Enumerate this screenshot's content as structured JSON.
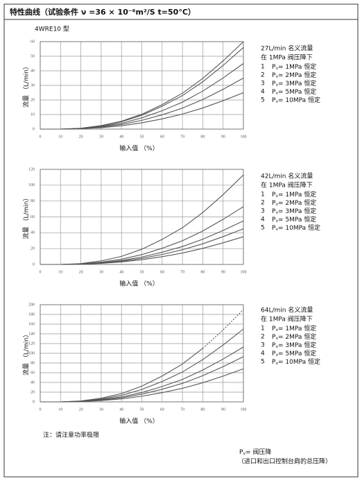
{
  "title": "特性曲线（试验条件 ν =36 × 10⁻⁶m²/S  t=50°C）",
  "pv_symbol": {
    "main": "P",
    "sub": "v"
  },
  "chart_data": [
    {
      "type": "line",
      "subtitle": "4WRE10 型",
      "x": [
        0,
        10,
        20,
        30,
        40,
        50,
        60,
        70,
        80,
        90,
        100
      ],
      "xlim": [
        0,
        100
      ],
      "xticks": [
        0,
        10,
        20,
        30,
        40,
        50,
        60,
        70,
        80,
        90,
        100
      ],
      "ylim": [
        0,
        60
      ],
      "yticks": [
        0,
        10,
        20,
        30,
        40,
        50,
        60
      ],
      "grid": true,
      "x_label": "输入值 （%）",
      "y_label": "流量 （L/min）",
      "legend_title": [
        "27L/min 名义流量",
        "在 1MPa 阀压降下"
      ],
      "series": [
        {
          "number": "1",
          "name": "= 1MPa 恒定",
          "color": "#555555",
          "values": [
            0,
            0,
            0.3,
            1,
            2.3,
            4.3,
            7,
            10.3,
            14.5,
            19.5,
            25
          ]
        },
        {
          "number": "2",
          "name": "= 2MPa 恒定",
          "color": "#555555",
          "values": [
            0,
            0,
            0.4,
            1.4,
            3.2,
            6,
            9.8,
            14.4,
            20.3,
            27.3,
            35
          ]
        },
        {
          "number": "3",
          "name": "= 3MPa 恒定",
          "color": "#555555",
          "values": [
            0,
            0,
            0.5,
            1.8,
            4,
            7.7,
            12.6,
            18.5,
            26.1,
            35.1,
            45
          ]
        },
        {
          "number": "4",
          "name": "= 5MPa 恒定",
          "color": "#555555",
          "values": [
            0,
            0,
            0.6,
            2.2,
            5,
            9.5,
            15.7,
            23,
            32.5,
            43.7,
            56
          ]
        },
        {
          "number": "5",
          "name": "= 10MPa 恒定",
          "color": "#555555",
          "values": [
            0,
            0,
            0.6,
            2.4,
            5.4,
            10.2,
            16.8,
            24.6,
            34.8,
            46.8,
            60
          ]
        }
      ]
    },
    {
      "type": "line",
      "x": [
        0,
        10,
        20,
        30,
        40,
        50,
        60,
        70,
        80,
        90,
        100
      ],
      "xlim": [
        0,
        100
      ],
      "xticks": [
        0,
        10,
        20,
        30,
        40,
        50,
        60,
        70,
        80,
        90,
        100
      ],
      "ylim": [
        0,
        120
      ],
      "yticks": [
        0,
        20,
        40,
        60,
        80,
        100,
        120
      ],
      "grid": true,
      "x_label": "输入值 （%）",
      "y_label": "流量 （L/min）",
      "legend_title": [
        "42L/min 名义流量",
        "在 1MPa 阀压降下"
      ],
      "series": [
        {
          "number": "1",
          "name": "= 1MPa 恒定",
          "color": "#555555",
          "values": [
            0,
            0,
            0.4,
            1.4,
            3.2,
            6,
            9.8,
            14.4,
            20.3,
            27.3,
            35
          ]
        },
        {
          "number": "2",
          "name": "= 2MPa 恒定",
          "color": "#555555",
          "values": [
            0,
            0,
            0.5,
            1.8,
            4,
            7.7,
            12.6,
            18.5,
            26.1,
            35.1,
            45
          ]
        },
        {
          "number": "3",
          "name": "= 3MPa 恒定",
          "color": "#555555",
          "values": [
            0,
            0,
            0.6,
            2.2,
            5,
            9.4,
            15.4,
            22.6,
            31.9,
            42.9,
            55
          ]
        },
        {
          "number": "4",
          "name": "= 5MPa 恒定",
          "color": "#555555",
          "values": [
            0,
            0,
            0.7,
            2.9,
            6.6,
            12.4,
            20.4,
            29.9,
            42.3,
            56.9,
            73
          ]
        },
        {
          "number": "5",
          "name": "= 10MPa 恒定",
          "color": "#555555",
          "values": [
            0,
            0,
            1.1,
            4.5,
            10.2,
            19.2,
            31.6,
            46.3,
            65.5,
            88.1,
            113
          ]
        }
      ]
    },
    {
      "type": "line",
      "x": [
        0,
        10,
        20,
        30,
        40,
        50,
        60,
        70,
        80,
        90,
        100
      ],
      "xlim": [
        0,
        100
      ],
      "xticks": [
        0,
        10,
        20,
        30,
        40,
        50,
        60,
        70,
        80,
        90,
        100
      ],
      "ylim": [
        0,
        200
      ],
      "yticks": [
        0,
        20,
        40,
        60,
        80,
        100,
        120,
        140,
        160,
        180,
        200
      ],
      "grid": true,
      "x_label": "输入值 （%）",
      "y_label": "流量 （L/min）",
      "legend_title": [
        "64L/min 名义流量",
        "在 1MPa 阀压降下"
      ],
      "series": [
        {
          "number": "1",
          "name": "= 1MPa 恒定",
          "color": "#555555",
          "values": [
            0,
            0,
            0.7,
            2.7,
            6.1,
            11.6,
            19,
            27.9,
            39.4,
            53,
            68
          ]
        },
        {
          "number": "2",
          "name": "= 2MPa 恒定",
          "color": "#555555",
          "values": [
            0,
            0,
            0.9,
            3.7,
            8.4,
            15.8,
            26,
            38.1,
            53.9,
            72.5,
            93
          ]
        },
        {
          "number": "3",
          "name": "= 3MPa 恒定",
          "color": "#555555",
          "values": [
            0,
            0,
            1.1,
            4.5,
            10.2,
            19.2,
            31.6,
            46.3,
            65.5,
            88.1,
            113
          ]
        },
        {
          "number": "4",
          "name": "= 5MPa 恒定",
          "color": "#555555",
          "values": [
            0,
            0,
            1.5,
            6,
            13.5,
            25.5,
            42,
            61.5,
            87,
            117,
            150
          ]
        },
        {
          "number": "5",
          "name": "= 10MPa 恒定",
          "color": "#555555",
          "dashed_from": 80,
          "values": [
            0,
            0,
            1.9,
            7.6,
            17.1,
            32.3,
            53.2,
            77.9,
            110.2,
            148.2,
            190
          ]
        }
      ]
    }
  ],
  "note": "注：请注意功率极限",
  "footer": {
    "line1": "= 阀压降",
    "line2": "（进口和出口控制台肩的总压降）"
  }
}
